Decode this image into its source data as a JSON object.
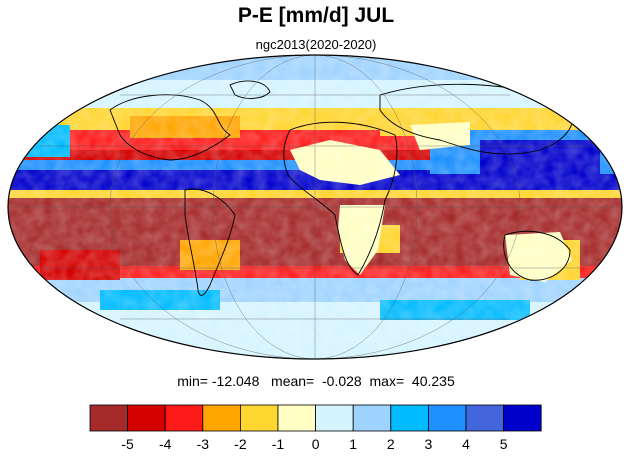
{
  "title": "P-E [mm/d] JUL",
  "subtitle": "ngc2013(2020-2020)",
  "stats": {
    "min_label": "min=",
    "min": "-12.048",
    "mean_label": "mean=",
    "mean": "-0.028",
    "max_label": "max=",
    "max": "40.235"
  },
  "colorbar": {
    "colors": [
      "#a52a2a",
      "#d40000",
      "#ff1a1a",
      "#ffa500",
      "#ffd530",
      "#ffffc4",
      "#d4f4ff",
      "#9fd3ff",
      "#00bbff",
      "#1e90ff",
      "#4466dd",
      "#0000cc"
    ],
    "ticks": [
      "-5",
      "-4",
      "-3",
      "-2",
      "-1",
      "0",
      "1",
      "2",
      "3",
      "4",
      "5"
    ]
  },
  "map": {
    "projection": "mollweide",
    "land_outline": "black",
    "gridlines": true,
    "ocean_pattern": {
      "arctic": "light blue / sky blue",
      "northern_midlatitudes": "orange-red band",
      "itcz": "deep blue band",
      "southern_subtropics": "dark red",
      "southern_ocean": "light blue"
    }
  }
}
